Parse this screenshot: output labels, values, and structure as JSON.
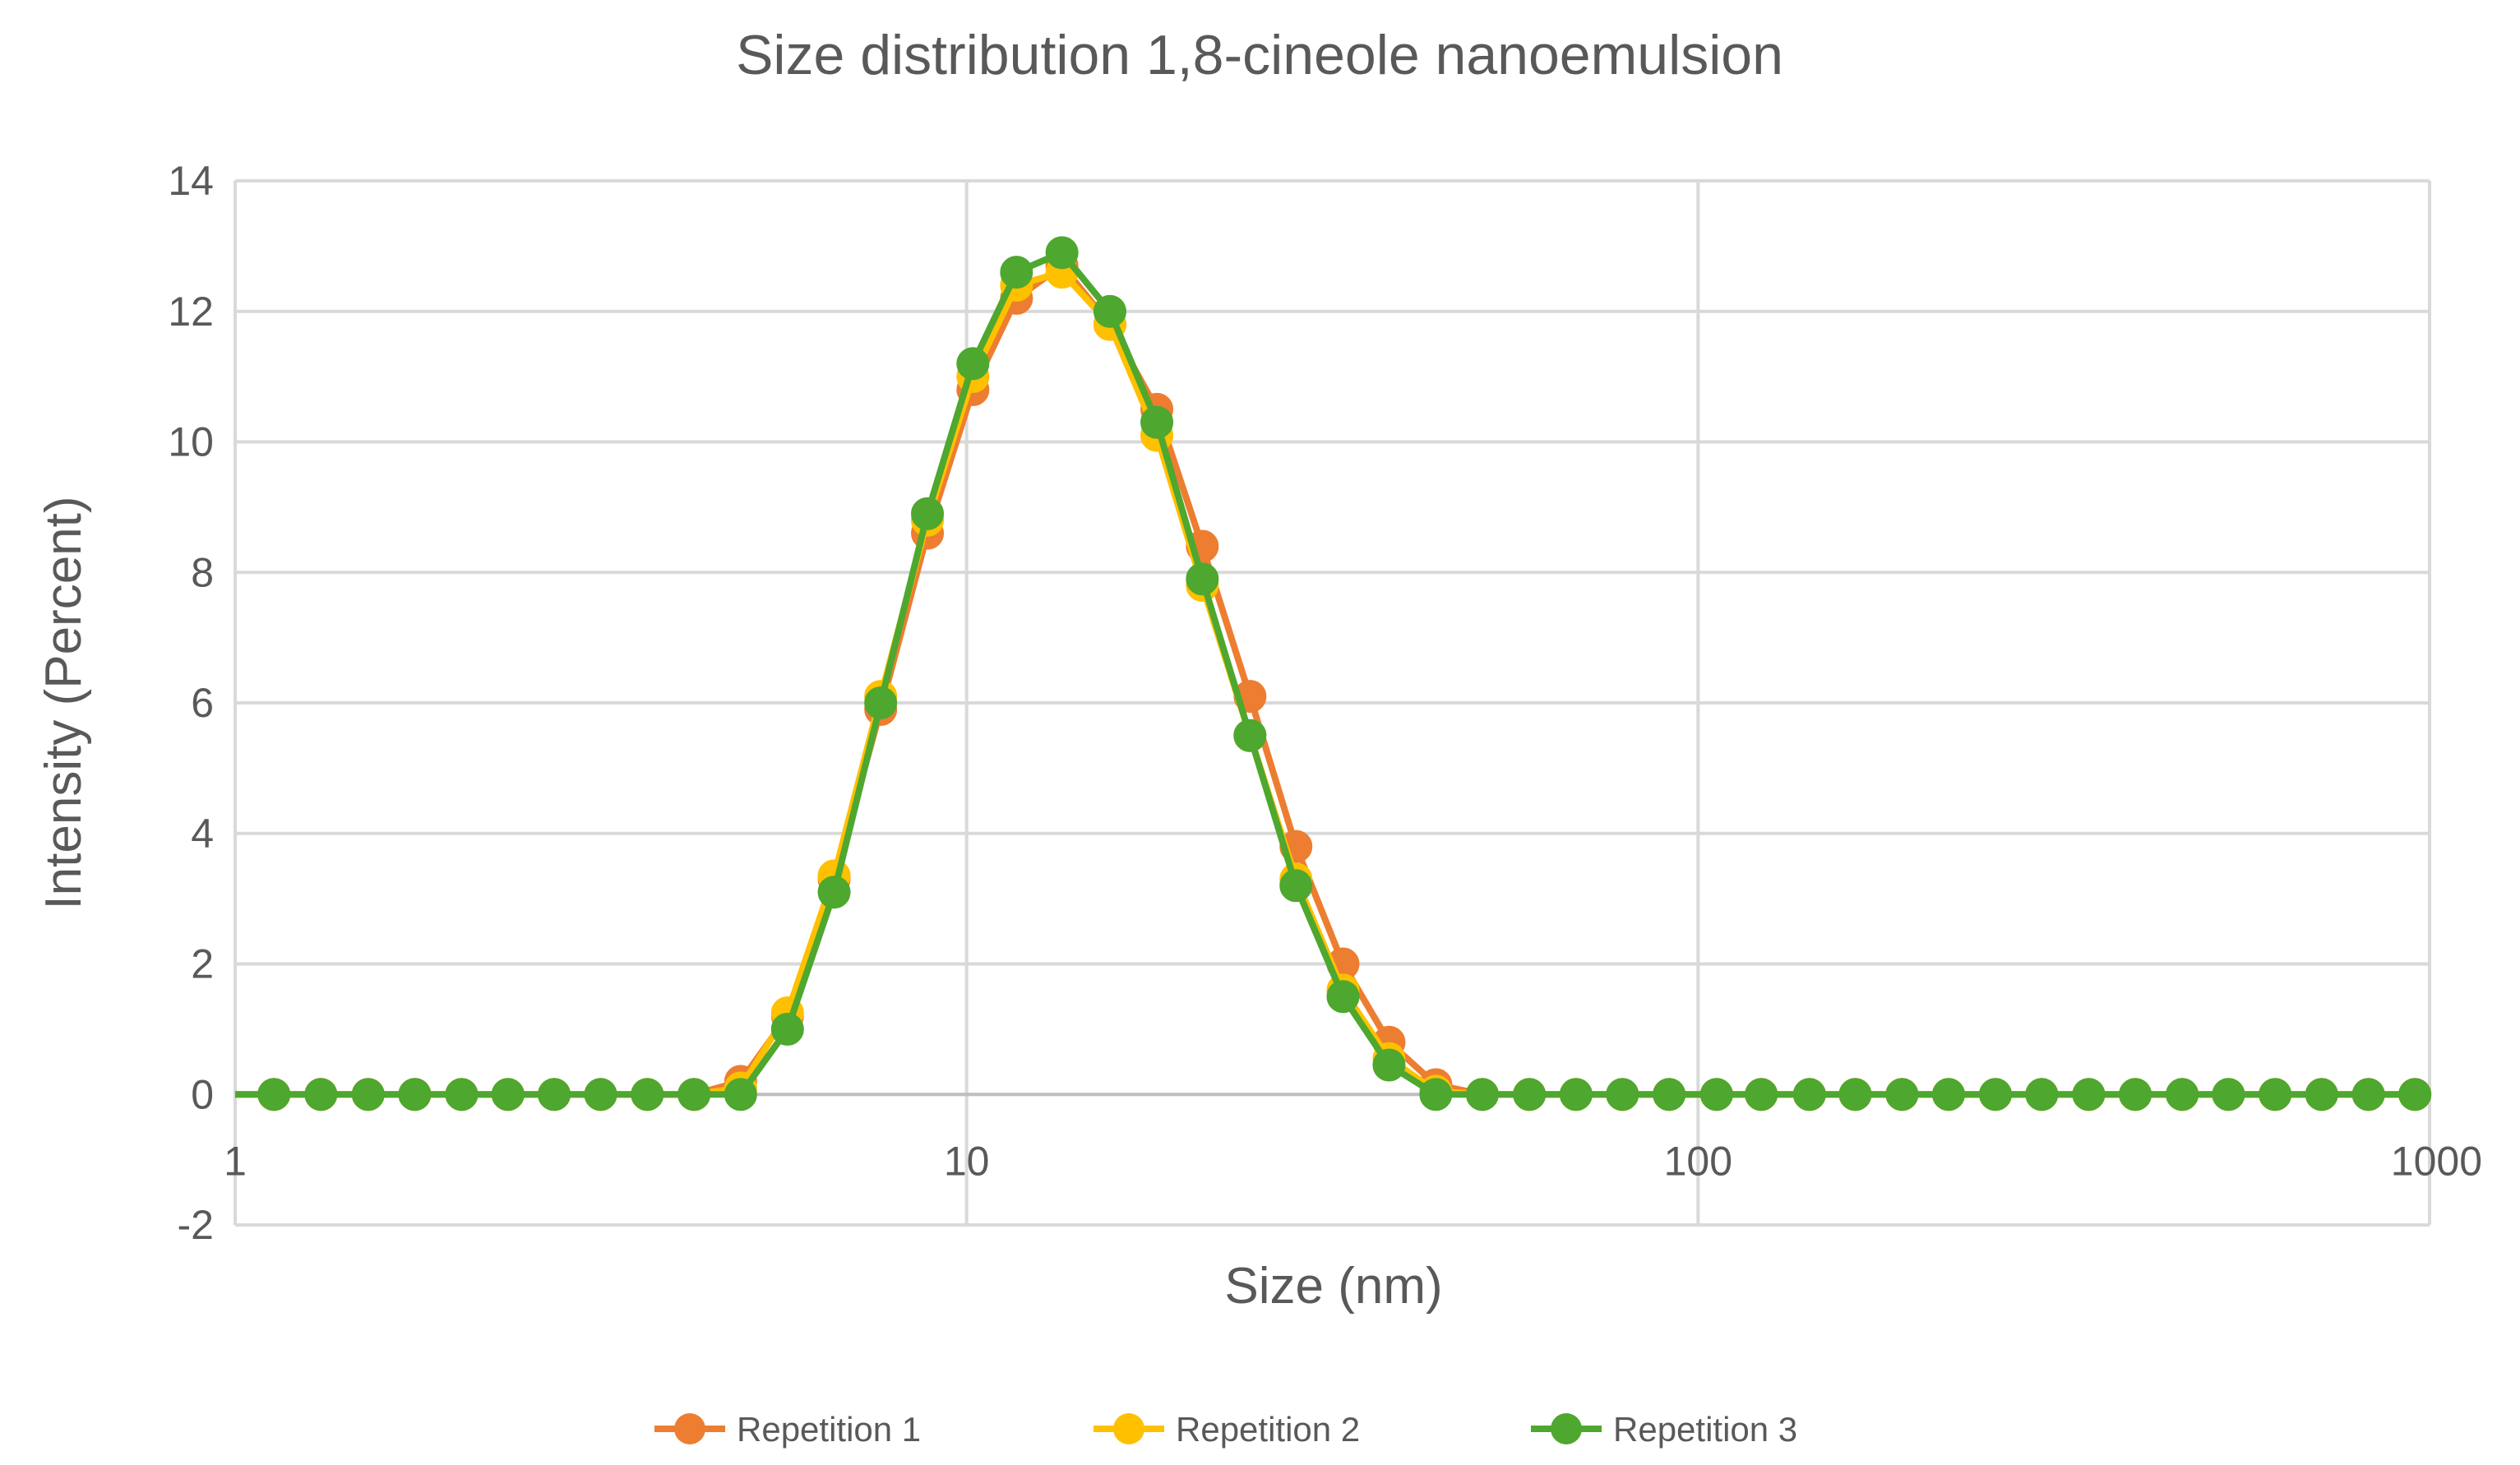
{
  "chart_data": {
    "type": "line",
    "title": "Size distribution 1,8-cineole nanoemulsion",
    "xlabel": "Size (nm)",
    "ylabel": "Intensity (Percent)",
    "xscale": "log",
    "xlim": [
      1,
      1000
    ],
    "ylim": [
      -2,
      14
    ],
    "x_ticks": [
      1,
      10,
      100,
      1000
    ],
    "x_tick_labels": [
      "1",
      "10",
      "100",
      "1000"
    ],
    "y_ticks": [
      -2,
      0,
      2,
      4,
      6,
      8,
      10,
      12,
      14
    ],
    "y_tick_labels": [
      "-2",
      "0",
      "2",
      "4",
      "6",
      "8",
      "10",
      "12",
      "14"
    ],
    "grid": true,
    "legend_position": "bottom",
    "x": [
      1.13,
      1.31,
      1.52,
      1.76,
      2.04,
      2.36,
      2.73,
      3.16,
      3.66,
      4.24,
      4.91,
      5.69,
      6.59,
      7.63,
      8.84,
      10.2,
      11.7,
      13.5,
      15.7,
      18.2,
      21.0,
      24.4,
      28.2,
      32.7,
      37.8,
      43.8,
      50.7,
      58.8,
      68.1,
      78.8,
      91.3,
      106,
      122,
      142,
      164,
      190,
      220,
      255,
      295,
      342,
      396,
      459,
      531,
      615,
      712,
      825,
      955
    ],
    "series": [
      {
        "name": "Repetition 1",
        "color": "#ED7D31",
        "values": [
          0,
          0,
          0,
          0,
          0,
          0,
          0,
          0,
          0,
          0,
          0.2,
          1.2,
          3.3,
          5.9,
          8.6,
          10.8,
          12.2,
          12.7,
          11.8,
          10.5,
          8.4,
          6.1,
          3.8,
          2.0,
          0.8,
          0.15,
          0,
          0,
          0,
          0,
          0,
          0,
          0,
          0,
          0,
          0,
          0,
          0,
          0,
          0,
          0,
          0,
          0,
          0,
          0,
          0,
          0
        ]
      },
      {
        "name": "Repetition 2",
        "color": "#FFC000",
        "values": [
          0,
          0,
          0,
          0,
          0,
          0,
          0,
          0,
          0,
          0,
          0.1,
          1.25,
          3.35,
          6.1,
          8.8,
          11.0,
          12.4,
          12.6,
          11.8,
          10.1,
          7.8,
          5.5,
          3.3,
          1.6,
          0.55,
          0.05,
          0,
          0,
          0,
          0,
          0,
          0,
          0,
          0,
          0,
          0,
          0,
          0,
          0,
          0,
          0,
          0,
          0,
          0,
          0,
          0,
          0
        ]
      },
      {
        "name": "Repetition 3",
        "color": "#4EA72E",
        "values": [
          0,
          0,
          0,
          0,
          0,
          0,
          0,
          0,
          0,
          0,
          0,
          1.0,
          3.1,
          6.0,
          8.9,
          11.2,
          12.6,
          12.9,
          12.0,
          10.3,
          7.9,
          5.5,
          3.2,
          1.5,
          0.45,
          0,
          0,
          0,
          0,
          0,
          0,
          0,
          0,
          0,
          0,
          0,
          0,
          0,
          0,
          0,
          0,
          0,
          0,
          0,
          0,
          0,
          0
        ]
      }
    ]
  }
}
